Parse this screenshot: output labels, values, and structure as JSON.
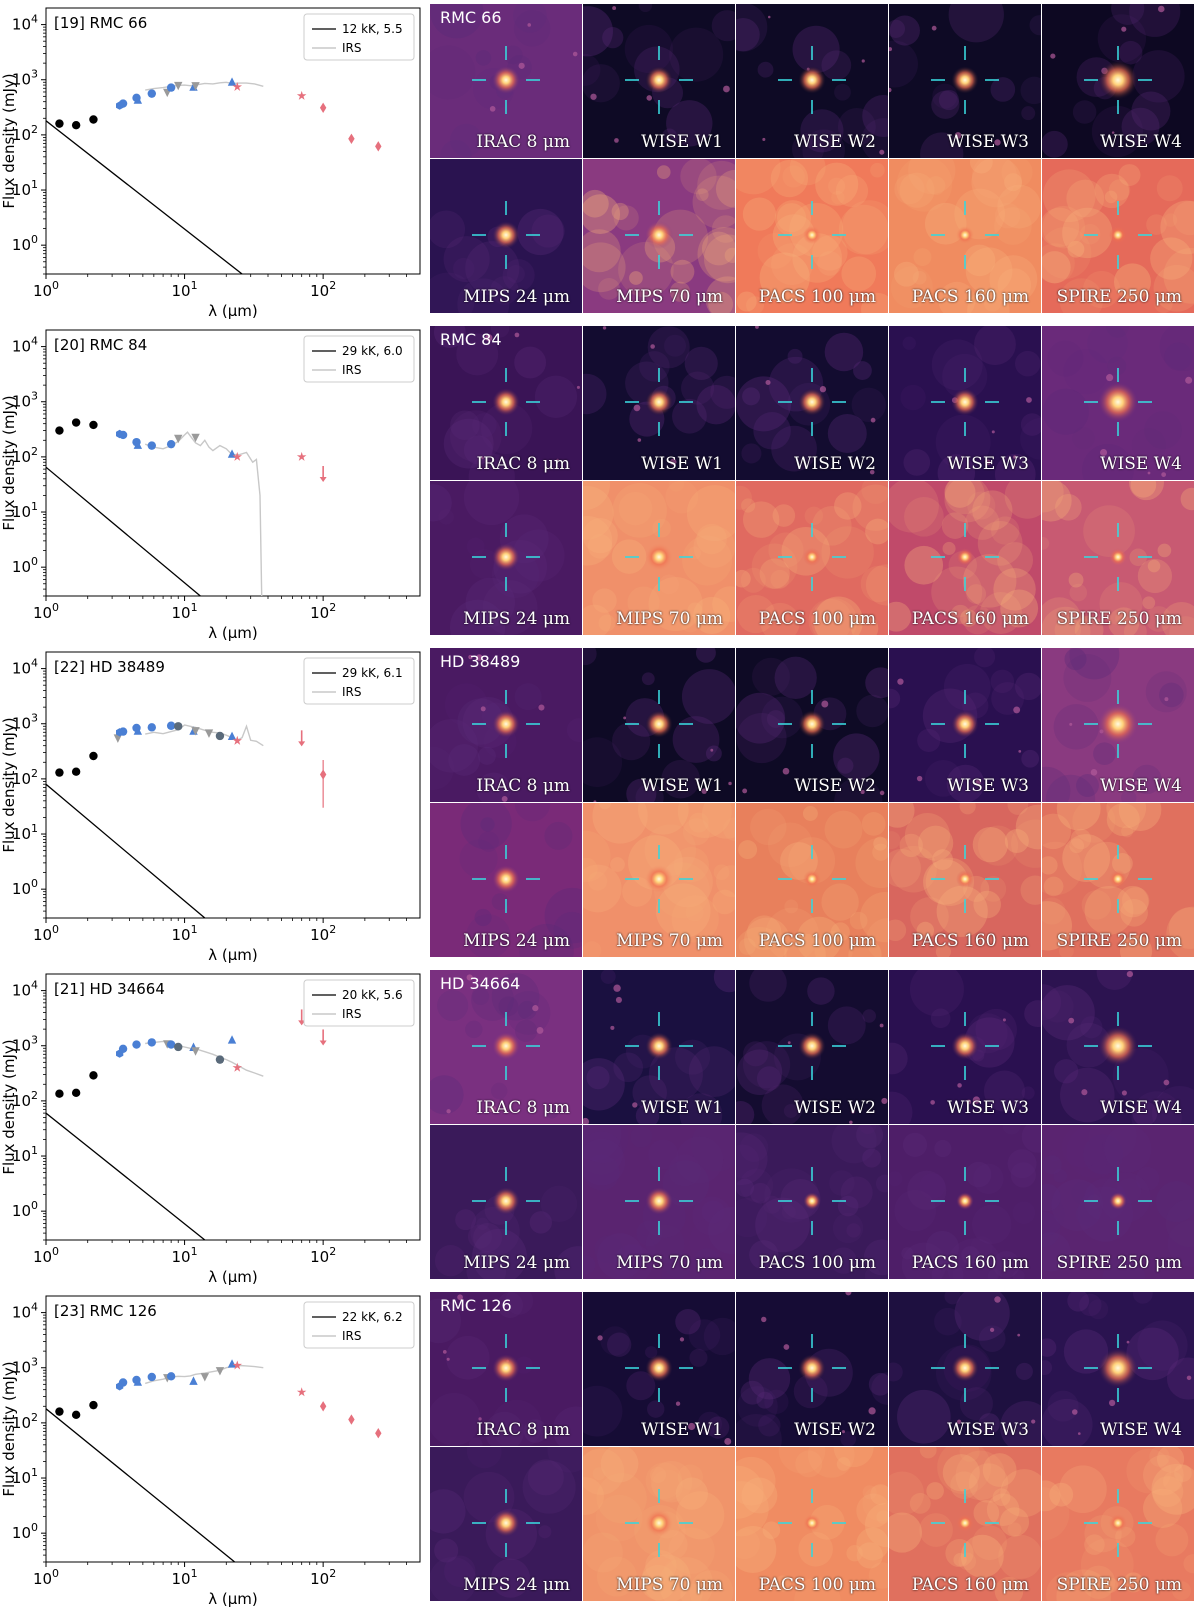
{
  "chart_data": [
    {
      "type": "scatter",
      "label": "[19] RMC 66",
      "xlabel": "λ (μm)",
      "ylabel": "Flux density (mJy)",
      "xscale": "log",
      "yscale": "log",
      "xlim": [
        1,
        500
      ],
      "ylim": [
        0.3,
        20000
      ],
      "legend": [
        "12 kK, 5.5",
        "IRS"
      ],
      "legend_loc": "top-right",
      "model_line": [
        [
          1,
          180
        ],
        [
          26,
          0.3
        ]
      ],
      "irs_spectrum": [
        [
          5.2,
          650
        ],
        [
          6,
          690
        ],
        [
          7,
          720
        ],
        [
          8,
          760
        ],
        [
          9,
          790
        ],
        [
          10,
          800
        ],
        [
          11,
          780
        ],
        [
          12,
          800
        ],
        [
          14,
          860
        ],
        [
          16,
          840
        ],
        [
          18,
          880
        ],
        [
          20,
          900
        ],
        [
          22,
          860
        ],
        [
          25,
          870
        ],
        [
          28,
          870
        ],
        [
          32,
          840
        ],
        [
          37,
          760
        ]
      ],
      "points": [
        {
          "x": 1.25,
          "y": 160,
          "marker": "circle",
          "color": "#000000"
        },
        {
          "x": 1.65,
          "y": 150,
          "marker": "circle",
          "color": "#000000"
        },
        {
          "x": 2.2,
          "y": 190,
          "marker": "circle",
          "color": "#000000"
        },
        {
          "x": 3.4,
          "y": 340,
          "marker": "hexagon",
          "color": "#4a7fd4"
        },
        {
          "x": 3.6,
          "y": 370,
          "marker": "circle",
          "color": "#4a7fd4"
        },
        {
          "x": 4.5,
          "y": 470,
          "marker": "circle",
          "color": "#4a7fd4"
        },
        {
          "x": 4.6,
          "y": 420,
          "marker": "triangle",
          "color": "#4a7fd4"
        },
        {
          "x": 5.8,
          "y": 560,
          "marker": "circle",
          "color": "#4a7fd4"
        },
        {
          "x": 7.5,
          "y": 600,
          "marker": "triangle-down",
          "color": "#9a9a9a"
        },
        {
          "x": 8,
          "y": 720,
          "marker": "circle",
          "color": "#4a7fd4"
        },
        {
          "x": 9,
          "y": 800,
          "marker": "triangle-down",
          "color": "#9a9a9a"
        },
        {
          "x": 11.6,
          "y": 720,
          "marker": "triangle",
          "color": "#4a7fd4"
        },
        {
          "x": 12,
          "y": 790,
          "marker": "triangle-down",
          "color": "#9a9a9a"
        },
        {
          "x": 22,
          "y": 890,
          "marker": "triangle",
          "color": "#4a7fd4"
        },
        {
          "x": 24,
          "y": 740,
          "marker": "star",
          "color": "#e6707d"
        },
        {
          "x": 70,
          "y": 510,
          "marker": "star",
          "color": "#e6707d"
        },
        {
          "x": 100,
          "y": 310,
          "marker": "diamond",
          "color": "#e6707d"
        },
        {
          "x": 160,
          "y": 85,
          "marker": "diamond",
          "color": "#e6707d"
        },
        {
          "x": 250,
          "y": 62,
          "marker": "diamond",
          "color": "#e6707d"
        }
      ]
    },
    {
      "type": "scatter",
      "label": "[20] RMC 84",
      "xlabel": "λ (μm)",
      "ylabel": "Flux density (mJy)",
      "xscale": "log",
      "yscale": "log",
      "xlim": [
        1,
        500
      ],
      "ylim": [
        0.3,
        20000
      ],
      "legend": [
        "29 kK, 6.0",
        "IRS"
      ],
      "legend_loc": "top-right",
      "model_line": [
        [
          1,
          65
        ],
        [
          13,
          0.3
        ]
      ],
      "irs_spectrum": [
        [
          5.2,
          170
        ],
        [
          6,
          150
        ],
        [
          7,
          140
        ],
        [
          8,
          160
        ],
        [
          9,
          190
        ],
        [
          10,
          250
        ],
        [
          10.5,
          280
        ],
        [
          11,
          240
        ],
        [
          12,
          180
        ],
        [
          13,
          160
        ],
        [
          14,
          200
        ],
        [
          15,
          150
        ],
        [
          16,
          130
        ],
        [
          18,
          160
        ],
        [
          20,
          140
        ],
        [
          22,
          110
        ],
        [
          25,
          110
        ],
        [
          28,
          120
        ],
        [
          31,
          80
        ],
        [
          33,
          90
        ],
        [
          35,
          20
        ],
        [
          36,
          0.3
        ]
      ],
      "points": [
        {
          "x": 1.25,
          "y": 300,
          "marker": "circle",
          "color": "#000000"
        },
        {
          "x": 1.65,
          "y": 420,
          "marker": "circle",
          "color": "#000000"
        },
        {
          "x": 2.2,
          "y": 380,
          "marker": "circle",
          "color": "#000000"
        },
        {
          "x": 3.4,
          "y": 260,
          "marker": "hexagon",
          "color": "#4a7fd4"
        },
        {
          "x": 3.6,
          "y": 250,
          "marker": "circle",
          "color": "#4a7fd4"
        },
        {
          "x": 4.5,
          "y": 185,
          "marker": "circle",
          "color": "#4a7fd4"
        },
        {
          "x": 4.6,
          "y": 160,
          "marker": "triangle",
          "color": "#4a7fd4"
        },
        {
          "x": 5.8,
          "y": 160,
          "marker": "circle",
          "color": "#4a7fd4"
        },
        {
          "x": 8,
          "y": 170,
          "marker": "circle",
          "color": "#4a7fd4"
        },
        {
          "x": 9,
          "y": 220,
          "marker": "triangle-down",
          "color": "#9a9a9a"
        },
        {
          "x": 12,
          "y": 230,
          "marker": "triangle-down",
          "color": "#9a9a9a"
        },
        {
          "x": 22,
          "y": 110,
          "marker": "triangle",
          "color": "#4a7fd4"
        },
        {
          "x": 24,
          "y": 100,
          "marker": "star",
          "color": "#e6707d"
        },
        {
          "x": 70,
          "y": 100,
          "marker": "star",
          "color": "#e6707d"
        },
        {
          "x": 100,
          "y": 45,
          "marker": "arrow-down",
          "color": "#e6707d"
        }
      ]
    },
    {
      "type": "scatter",
      "label": "[22] HD 38489",
      "xlabel": "λ (μm)",
      "ylabel": "Flux density (mJy)",
      "xscale": "log",
      "yscale": "log",
      "xlim": [
        1,
        500
      ],
      "ylim": [
        0.3,
        20000
      ],
      "legend": [
        "29 kK, 6.1",
        "IRS"
      ],
      "legend_loc": "top-right",
      "model_line": [
        [
          1,
          80
        ],
        [
          14,
          0.3
        ]
      ],
      "irs_spectrum": [
        [
          5.2,
          650
        ],
        [
          6,
          700
        ],
        [
          7,
          660
        ],
        [
          8,
          720
        ],
        [
          9,
          780
        ],
        [
          10,
          950
        ],
        [
          11,
          900
        ],
        [
          12,
          860
        ],
        [
          14,
          760
        ],
        [
          16,
          700
        ],
        [
          18,
          680
        ],
        [
          20,
          620
        ],
        [
          22,
          560
        ],
        [
          24,
          500
        ],
        [
          26,
          560
        ],
        [
          28,
          900
        ],
        [
          30,
          500
        ],
        [
          33,
          480
        ],
        [
          37,
          400
        ]
      ],
      "points": [
        {
          "x": 1.25,
          "y": 130,
          "marker": "circle",
          "color": "#000000"
        },
        {
          "x": 1.65,
          "y": 135,
          "marker": "circle",
          "color": "#000000"
        },
        {
          "x": 2.2,
          "y": 260,
          "marker": "circle",
          "color": "#000000"
        },
        {
          "x": 3.3,
          "y": 560,
          "marker": "triangle-down",
          "color": "#9a9a9a"
        },
        {
          "x": 3.4,
          "y": 700,
          "marker": "hexagon",
          "color": "#4a7fd4"
        },
        {
          "x": 3.6,
          "y": 720,
          "marker": "circle",
          "color": "#4a7fd4"
        },
        {
          "x": 4.5,
          "y": 840,
          "marker": "circle",
          "color": "#4a7fd4"
        },
        {
          "x": 4.6,
          "y": 720,
          "marker": "triangle",
          "color": "#4a7fd4"
        },
        {
          "x": 5.8,
          "y": 860,
          "marker": "circle",
          "color": "#4a7fd4"
        },
        {
          "x": 8,
          "y": 920,
          "marker": "circle",
          "color": "#4a7fd4"
        },
        {
          "x": 9,
          "y": 900,
          "marker": "circle",
          "color": "#5a6a7a"
        },
        {
          "x": 11.6,
          "y": 720,
          "marker": "triangle",
          "color": "#4a7fd4"
        },
        {
          "x": 12,
          "y": 760,
          "marker": "triangle-down",
          "color": "#9a9a9a"
        },
        {
          "x": 15,
          "y": 690,
          "marker": "triangle-down",
          "color": "#9a9a9a"
        },
        {
          "x": 18,
          "y": 600,
          "marker": "circle",
          "color": "#5a6a7a"
        },
        {
          "x": 22,
          "y": 580,
          "marker": "triangle",
          "color": "#4a7fd4"
        },
        {
          "x": 24,
          "y": 490,
          "marker": "star",
          "color": "#e6707d"
        },
        {
          "x": 70,
          "y": 500,
          "marker": "arrow-down",
          "color": "#e6707d"
        },
        {
          "x": 100,
          "y": 120,
          "marker": "diamond",
          "color": "#e6707d",
          "yerr": [
            30,
            220
          ]
        }
      ]
    },
    {
      "type": "scatter",
      "label": "[21] HD 34664",
      "xlabel": "λ (μm)",
      "ylabel": "Flux density (mJy)",
      "xscale": "log",
      "yscale": "log",
      "xlim": [
        1,
        500
      ],
      "ylim": [
        0.3,
        20000
      ],
      "legend": [
        "20 kK, 5.6",
        "IRS"
      ],
      "legend_loc": "top-right",
      "model_line": [
        [
          1,
          60
        ],
        [
          14,
          0.3
        ]
      ],
      "irs_spectrum": [
        [
          5.2,
          1100
        ],
        [
          6,
          1150
        ],
        [
          7,
          1200
        ],
        [
          8,
          1150
        ],
        [
          9,
          1000
        ],
        [
          10,
          950
        ],
        [
          11,
          900
        ],
        [
          12,
          880
        ],
        [
          14,
          780
        ],
        [
          16,
          700
        ],
        [
          18,
          620
        ],
        [
          20,
          560
        ],
        [
          22,
          500
        ],
        [
          25,
          420
        ],
        [
          28,
          360
        ],
        [
          32,
          320
        ],
        [
          37,
          280
        ]
      ],
      "points": [
        {
          "x": 1.25,
          "y": 135,
          "marker": "circle",
          "color": "#000000"
        },
        {
          "x": 1.65,
          "y": 140,
          "marker": "circle",
          "color": "#000000"
        },
        {
          "x": 2.2,
          "y": 290,
          "marker": "circle",
          "color": "#000000"
        },
        {
          "x": 3.4,
          "y": 720,
          "marker": "hexagon",
          "color": "#4a7fd4"
        },
        {
          "x": 3.6,
          "y": 880,
          "marker": "circle",
          "color": "#4a7fd4"
        },
        {
          "x": 4.5,
          "y": 1050,
          "marker": "circle",
          "color": "#4a7fd4"
        },
        {
          "x": 5.8,
          "y": 1150,
          "marker": "circle",
          "color": "#4a7fd4"
        },
        {
          "x": 7.5,
          "y": 1100,
          "marker": "triangle-down",
          "color": "#9a9a9a"
        },
        {
          "x": 8,
          "y": 1050,
          "marker": "circle",
          "color": "#4a7fd4"
        },
        {
          "x": 9,
          "y": 950,
          "marker": "circle",
          "color": "#5a6a7a"
        },
        {
          "x": 11.6,
          "y": 920,
          "marker": "triangle",
          "color": "#4a7fd4"
        },
        {
          "x": 12,
          "y": 820,
          "marker": "triangle-down",
          "color": "#9a9a9a"
        },
        {
          "x": 18,
          "y": 560,
          "marker": "circle",
          "color": "#5a6a7a"
        },
        {
          "x": 22,
          "y": 1250,
          "marker": "triangle",
          "color": "#4a7fd4"
        },
        {
          "x": 24,
          "y": 400,
          "marker": "star",
          "color": "#e6707d"
        },
        {
          "x": 70,
          "y": 3000,
          "marker": "arrow-down",
          "color": "#e6707d"
        },
        {
          "x": 100,
          "y": 1300,
          "marker": "arrow-down",
          "color": "#e6707d"
        }
      ]
    },
    {
      "type": "scatter",
      "label": "[23] RMC 126",
      "xlabel": "λ (μm)",
      "ylabel": "Flux density (mJy)",
      "xscale": "log",
      "yscale": "log",
      "xlim": [
        1,
        500
      ],
      "ylim": [
        0.3,
        20000
      ],
      "legend": [
        "22 kK, 6.2",
        "IRS"
      ],
      "legend_loc": "top-right",
      "model_line": [
        [
          1,
          180
        ],
        [
          23,
          0.3
        ]
      ],
      "irs_spectrum": [
        [
          5.2,
          520
        ],
        [
          6,
          580
        ],
        [
          7,
          620
        ],
        [
          8,
          680
        ],
        [
          9,
          700
        ],
        [
          10,
          690
        ],
        [
          11,
          710
        ],
        [
          12,
          760
        ],
        [
          14,
          800
        ],
        [
          16,
          850
        ],
        [
          18,
          900
        ],
        [
          20,
          1000
        ],
        [
          22,
          1050
        ],
        [
          25,
          1100
        ],
        [
          28,
          1080
        ],
        [
          32,
          1050
        ],
        [
          37,
          1000
        ]
      ],
      "points": [
        {
          "x": 1.25,
          "y": 160,
          "marker": "circle",
          "color": "#000000"
        },
        {
          "x": 1.65,
          "y": 140,
          "marker": "circle",
          "color": "#000000"
        },
        {
          "x": 2.2,
          "y": 210,
          "marker": "circle",
          "color": "#000000"
        },
        {
          "x": 3.4,
          "y": 460,
          "marker": "hexagon",
          "color": "#4a7fd4"
        },
        {
          "x": 3.6,
          "y": 540,
          "marker": "circle",
          "color": "#4a7fd4"
        },
        {
          "x": 4.5,
          "y": 600,
          "marker": "circle",
          "color": "#4a7fd4"
        },
        {
          "x": 4.6,
          "y": 540,
          "marker": "triangle",
          "color": "#4a7fd4"
        },
        {
          "x": 5.8,
          "y": 680,
          "marker": "circle",
          "color": "#4a7fd4"
        },
        {
          "x": 7.5,
          "y": 670,
          "marker": "triangle-down",
          "color": "#9a9a9a"
        },
        {
          "x": 8,
          "y": 700,
          "marker": "circle",
          "color": "#4a7fd4"
        },
        {
          "x": 11.6,
          "y": 560,
          "marker": "triangle",
          "color": "#4a7fd4"
        },
        {
          "x": 14,
          "y": 700,
          "marker": "triangle-down",
          "color": "#9a9a9a"
        },
        {
          "x": 18,
          "y": 900,
          "marker": "triangle-down",
          "color": "#9a9a9a"
        },
        {
          "x": 22,
          "y": 1150,
          "marker": "triangle",
          "color": "#4a7fd4"
        },
        {
          "x": 24,
          "y": 1100,
          "marker": "star",
          "color": "#e6707d"
        },
        {
          "x": 70,
          "y": 360,
          "marker": "star",
          "color": "#e6707d"
        },
        {
          "x": 100,
          "y": 200,
          "marker": "diamond",
          "color": "#e6707d"
        },
        {
          "x": 160,
          "y": 115,
          "marker": "diamond",
          "color": "#e6707d"
        },
        {
          "x": 250,
          "y": 65,
          "marker": "diamond",
          "color": "#e6707d"
        }
      ]
    }
  ],
  "cutouts": {
    "band_labels_top": [
      "IRAC 8 μm",
      "WISE W1",
      "WISE W2",
      "WISE W3",
      "WISE W4"
    ],
    "band_labels_bottom": [
      "MIPS 24 μm",
      "MIPS 70 μm",
      "PACS 100 μm",
      "PACS 160 μm",
      "SPIRE 250 μm"
    ],
    "source_names": [
      "RMC 66",
      "RMC 84",
      "HD 38489",
      "HD 34664",
      "RMC 126"
    ],
    "crosshair_color": "#3ad6dc",
    "colormap": "magma"
  }
}
